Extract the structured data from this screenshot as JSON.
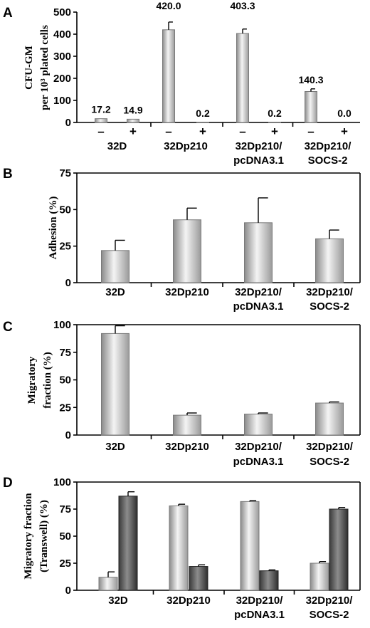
{
  "chart_data": [
    {
      "panel": "A",
      "type": "bar",
      "ylabel": [
        "CFU-GM",
        "per 10³ plated cells"
      ],
      "yticks": [
        0,
        100,
        200,
        300,
        400,
        500
      ],
      "ylim": [
        0,
        500
      ],
      "categories": [
        {
          "lines": [
            "32D"
          ],
          "bars": [
            {
              "sign": "–",
              "value": 17.2,
              "label": "17.2",
              "err": 0
            },
            {
              "sign": "+",
              "value": 14.9,
              "label": "14.9",
              "err": 0
            }
          ]
        },
        {
          "lines": [
            "32Dp210"
          ],
          "bars": [
            {
              "sign": "–",
              "value": 420.0,
              "label": "420.0",
              "err": 35
            },
            {
              "sign": "+",
              "value": 0.2,
              "label": "0.2",
              "err": 0
            }
          ]
        },
        {
          "lines": [
            "32Dp210/",
            "pcDNA3.1"
          ],
          "bars": [
            {
              "sign": "–",
              "value": 403.3,
              "label": "403.3",
              "err": 20
            },
            {
              "sign": "+",
              "value": 0.2,
              "label": "0.2",
              "err": 0
            }
          ]
        },
        {
          "lines": [
            "32Dp210/",
            "SOCS-2"
          ],
          "bars": [
            {
              "sign": "–",
              "value": 140.3,
              "label": "140.3",
              "err": 12
            },
            {
              "sign": "+",
              "value": 0.0,
              "label": "0.0",
              "err": 0
            }
          ]
        }
      ]
    },
    {
      "panel": "B",
      "type": "bar",
      "ylabel": [
        "Adhesion (%)"
      ],
      "yticks": [
        0,
        25,
        50,
        75
      ],
      "ylim": [
        0,
        75
      ],
      "categories": [
        {
          "lines": [
            "32D"
          ],
          "bars": [
            {
              "value": 22,
              "err": 7
            }
          ]
        },
        {
          "lines": [
            "32Dp210"
          ],
          "bars": [
            {
              "value": 43,
              "err": 8
            }
          ]
        },
        {
          "lines": [
            "32Dp210/",
            "pcDNA3.1"
          ],
          "bars": [
            {
              "value": 41,
              "err": 17
            }
          ]
        },
        {
          "lines": [
            "32Dp210/",
            "SOCS-2"
          ],
          "bars": [
            {
              "value": 30,
              "err": 6
            }
          ]
        }
      ]
    },
    {
      "panel": "C",
      "type": "bar",
      "ylabel": [
        "Migratory",
        "fraction (%)"
      ],
      "yticks": [
        0,
        25,
        50,
        75,
        100
      ],
      "ylim": [
        0,
        100
      ],
      "categories": [
        {
          "lines": [
            "32D"
          ],
          "bars": [
            {
              "value": 92,
              "err": 7
            }
          ]
        },
        {
          "lines": [
            "32Dp210"
          ],
          "bars": [
            {
              "value": 18,
              "err": 2
            }
          ]
        },
        {
          "lines": [
            "32Dp210/",
            "pcDNA3.1"
          ],
          "bars": [
            {
              "value": 19,
              "err": 1
            }
          ]
        },
        {
          "lines": [
            "32Dp210/",
            "SOCS-2"
          ],
          "bars": [
            {
              "value": 29,
              "err": 1
            }
          ]
        }
      ]
    },
    {
      "panel": "D",
      "type": "bar",
      "ylabel": [
        "Migratory fraction",
        "(Transwell) (%)"
      ],
      "yticks": [
        0,
        25,
        50,
        75,
        100
      ],
      "ylim": [
        0,
        100
      ],
      "categories": [
        {
          "lines": [
            "32D"
          ],
          "bars": [
            {
              "value": 12,
              "err": 5,
              "shade": "light"
            },
            {
              "value": 87,
              "err": 4,
              "shade": "dark"
            }
          ]
        },
        {
          "lines": [
            "32Dp210"
          ],
          "bars": [
            {
              "value": 78,
              "err": 1.5,
              "shade": "light"
            },
            {
              "value": 22,
              "err": 1.5,
              "shade": "dark"
            }
          ]
        },
        {
          "lines": [
            "32Dp210/",
            "pcDNA3.1"
          ],
          "bars": [
            {
              "value": 82,
              "err": 0.8,
              "shade": "light"
            },
            {
              "value": 18,
              "err": 0.8,
              "shade": "dark"
            }
          ]
        },
        {
          "lines": [
            "32Dp210/",
            "SOCS-2"
          ],
          "bars": [
            {
              "value": 25,
              "err": 1.5,
              "shade": "light"
            },
            {
              "value": 75,
              "err": 1.5,
              "shade": "dark"
            }
          ]
        }
      ]
    }
  ],
  "colors": {
    "light_bar_edge": "#7a7a7a",
    "light_bar_fill": "#c8c8c8",
    "dark_bar_fill": "#555555"
  }
}
